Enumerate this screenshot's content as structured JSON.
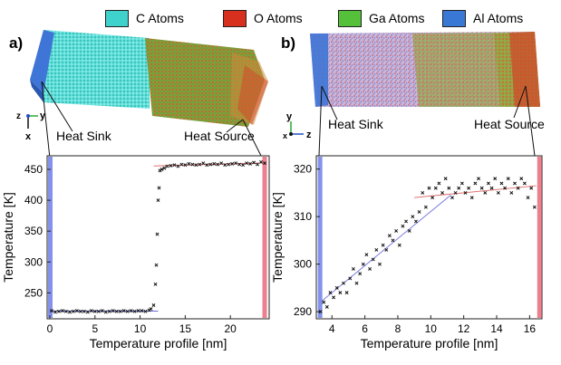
{
  "legend": [
    {
      "label": "C Atoms",
      "color": "#3fd1cc"
    },
    {
      "label": "O Atoms",
      "color": "#d7301f"
    },
    {
      "label": "Ga Atoms",
      "color": "#55c13b"
    },
    {
      "label": "Al Atoms",
      "color": "#3a78d6"
    }
  ],
  "panel_a": {
    "label": "a)",
    "heat_sink_label": "Heat Sink",
    "heat_source_label": "Heat Source",
    "axis_labels": {
      "y": "y",
      "z": "z",
      "x": "x"
    }
  },
  "panel_b": {
    "label": "b)",
    "heat_sink_label": "Heat Sink",
    "heat_source_label": "Heat Source",
    "axis_labels": {
      "y": "y",
      "z": "z",
      "x": "x"
    }
  },
  "chart_data": [
    {
      "type": "scatter",
      "xlabel": "Temperature profile [nm]",
      "ylabel": "Temperature [K]",
      "xlim": [
        -0.3,
        24.3
      ],
      "ylim": [
        208,
        472
      ],
      "xticks": [
        0,
        5,
        10,
        15,
        20
      ],
      "yticks": [
        250,
        300,
        350,
        400,
        450
      ],
      "heat_sink_x": 0,
      "heat_source_x": 23.8,
      "fit_lines": [
        {
          "x": [
            0,
            12
          ],
          "y": [
            220.5,
            220.5
          ],
          "color": "#6a6ad8"
        },
        {
          "x": [
            11.5,
            24
          ],
          "y": [
            455.5,
            460.5
          ],
          "color": "#e07070"
        }
      ],
      "series": [
        {
          "x": [
            0.2,
            0.6,
            1,
            1.4,
            1.8,
            2.2,
            2.6,
            3,
            3.4,
            3.8,
            4.2,
            4.6,
            5,
            5.4,
            5.8,
            6.2,
            6.6,
            7,
            7.4,
            7.8,
            8.2,
            8.6,
            9,
            9.4,
            9.8,
            10.2,
            10.6,
            11,
            11.2,
            11.5,
            11.7,
            11.8,
            11.9,
            12,
            12.1,
            12.2,
            12.4,
            12.7,
            13,
            13.4,
            13.8,
            14.2,
            14.6,
            15,
            15.4,
            15.8,
            16.2,
            16.6,
            17,
            17.4,
            17.8,
            18.2,
            18.6,
            19,
            19.4,
            19.8,
            20.2,
            20.6,
            21,
            21.4,
            21.8,
            22.2,
            22.6,
            23,
            23.4,
            23.8
          ],
          "y": [
            221,
            219,
            220,
            221,
            220,
            219,
            220,
            221,
            220,
            220,
            219,
            221,
            220,
            220,
            221,
            219,
            220,
            221,
            220,
            220,
            221,
            220,
            221,
            220,
            221,
            221,
            220,
            222,
            224,
            230,
            264,
            295,
            345,
            400,
            420,
            448,
            450,
            452,
            455,
            456,
            457,
            455,
            458,
            457,
            459,
            458,
            457,
            458,
            460,
            457,
            458,
            459,
            458,
            460,
            457,
            458,
            459,
            460,
            458,
            457,
            460,
            459,
            461,
            458,
            462,
            460
          ]
        }
      ]
    },
    {
      "type": "scatter",
      "xlabel": "Temperature profile [nm]",
      "ylabel": "Temperature [K]",
      "xlim": [
        3.05,
        16.75
      ],
      "ylim": [
        288.5,
        322.8
      ],
      "xticks": [
        4,
        6,
        8,
        10,
        12,
        14,
        16
      ],
      "yticks": [
        290,
        300,
        310,
        320
      ],
      "heat_sink_x": 3.25,
      "heat_source_x": 16.6,
      "fit_lines": [
        {
          "x": [
            3.3,
            11.2
          ],
          "y": [
            292,
            314.5
          ],
          "color": "#8080e0"
        },
        {
          "x": [
            9,
            16.4
          ],
          "y": [
            314,
            316.5
          ],
          "color": "#e07070"
        }
      ],
      "series": [
        {
          "x": [
            3.3,
            3.5,
            3.7,
            3.9,
            4.1,
            4.3,
            4.5,
            4.7,
            4.9,
            5.1,
            5.3,
            5.5,
            5.7,
            5.9,
            6.1,
            6.3,
            6.5,
            6.7,
            6.9,
            7.1,
            7.3,
            7.5,
            7.7,
            7.9,
            8.1,
            8.3,
            8.5,
            8.7,
            8.9,
            9.1,
            9.3,
            9.5,
            9.7,
            9.9,
            10.1,
            10.3,
            10.5,
            10.7,
            10.9,
            11.1,
            11.3,
            11.5,
            11.7,
            11.9,
            12.1,
            12.3,
            12.5,
            12.7,
            12.9,
            13.1,
            13.3,
            13.5,
            13.7,
            13.9,
            14.1,
            14.3,
            14.5,
            14.7,
            14.9,
            15.1,
            15.3,
            15.5,
            15.7,
            15.9,
            16.1,
            16.3
          ],
          "y": [
            290,
            292,
            291,
            294,
            293,
            295,
            294,
            296,
            294,
            297,
            299,
            296,
            298,
            300,
            302,
            299,
            301,
            303,
            300,
            304,
            303,
            306,
            305,
            307,
            304,
            308,
            309,
            307,
            310,
            309,
            311,
            315,
            312,
            316,
            314,
            316,
            317,
            315,
            318,
            316,
            314,
            315,
            316,
            317,
            315,
            316,
            314,
            317,
            318,
            316,
            315,
            317,
            316,
            318,
            315,
            317,
            316,
            318,
            315,
            317,
            316,
            318,
            317,
            314,
            316,
            312
          ]
        }
      ]
    }
  ]
}
